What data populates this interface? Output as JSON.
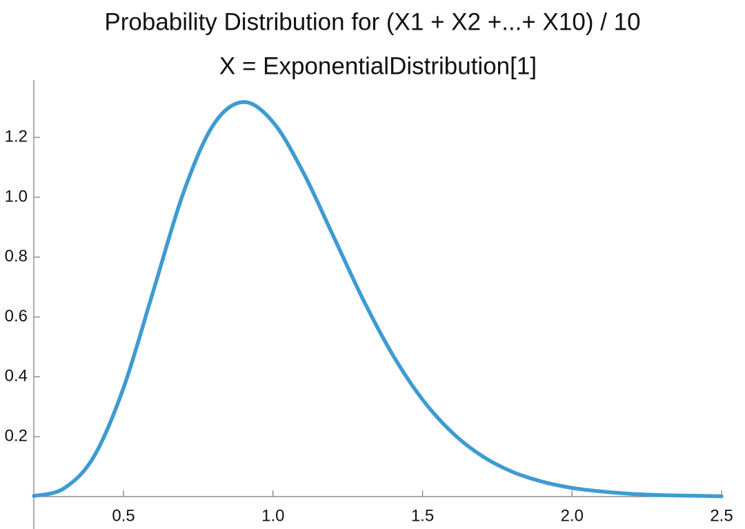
{
  "chart_data": {
    "type": "line",
    "title": "Probability Distribution for (X1 + X2 +...+ X10) / 10",
    "subtitle": "X = ExponentialDistribution[1]",
    "x": [
      0.2,
      0.3,
      0.4,
      0.5,
      0.6,
      0.7,
      0.8,
      0.9,
      1.0,
      1.1,
      1.2,
      1.3,
      1.4,
      1.5,
      1.6,
      1.7,
      1.8,
      1.9,
      2.0,
      2.1,
      2.2,
      2.3,
      2.4,
      2.5
    ],
    "series": [
      {
        "color": "#3f9bd2",
        "values": [
          0.002,
          0.027,
          0.132,
          0.363,
          0.688,
          1.014,
          1.241,
          1.318,
          1.251,
          1.085,
          0.874,
          0.661,
          0.474,
          0.324,
          0.213,
          0.135,
          0.083,
          0.05,
          0.029,
          0.017,
          0.009,
          0.005,
          0.003,
          0.001
        ]
      }
    ],
    "xlim": [
      0.2,
      2.5
    ],
    "ylim": [
      0,
      1.387
    ],
    "xticks": [
      {
        "value": 0.5,
        "label": "0.5"
      },
      {
        "value": 1.0,
        "label": "1.0"
      },
      {
        "value": 1.5,
        "label": "1.5"
      },
      {
        "value": 2.0,
        "label": "2.0"
      },
      {
        "value": 2.5,
        "label": "2.5"
      }
    ],
    "yticks": [
      0.2,
      0.4,
      0.6,
      0.8,
      {
        "value": 1.0,
        "label": "1.0"
      },
      1.2
    ]
  }
}
